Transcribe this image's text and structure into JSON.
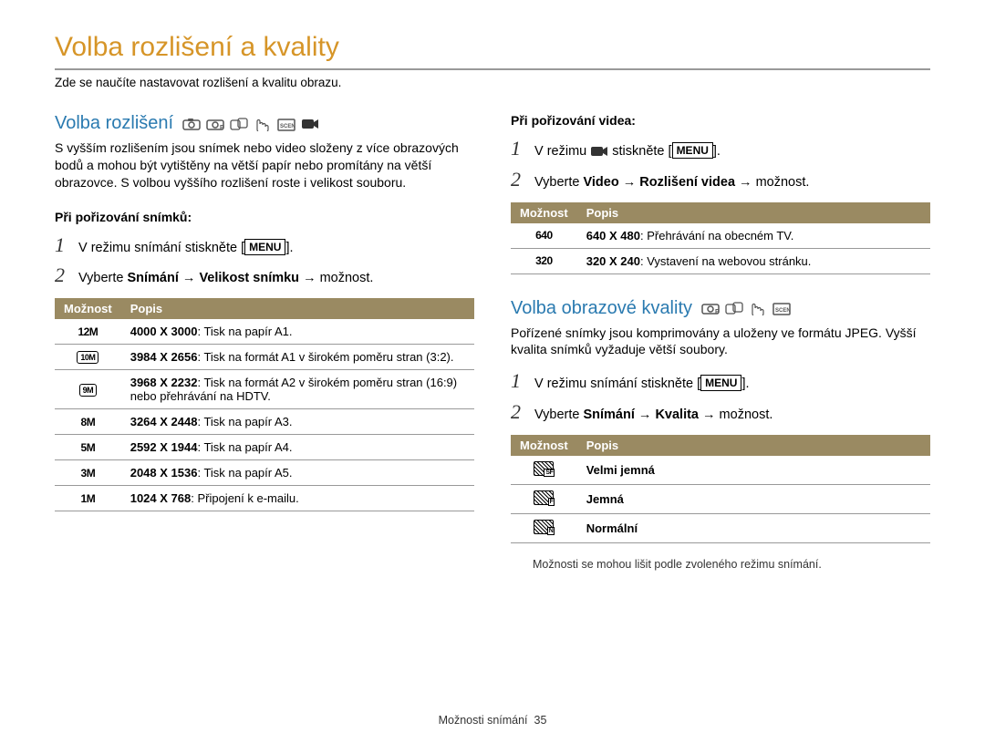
{
  "page": {
    "title": "Volba rozlišení a kvality",
    "subtitle": "Zde se naučíte nastavovat rozlišení a kvalitu obrazu.",
    "footer_label": "Možnosti snímání",
    "footer_page": "35"
  },
  "colors": {
    "title": "#d69528",
    "section": "#2a7ab0",
    "table_header_bg": "#9a8a62",
    "table_header_fg": "#ffffff",
    "rule": "#999999"
  },
  "menu_label": "MENU",
  "left": {
    "sec_title": "Volba rozlišení",
    "body": "S vyšším rozlišením jsou snímek nebo video složeny z více obrazových bodů a mohou být vytištěny na větší papír nebo promítány na větší obrazovce. S volbou vyššího rozlišení roste i velikost souboru.",
    "photo_head": "Při pořizování snímků:",
    "photo_steps": {
      "s1_pre": "V režimu snímání stiskněte [",
      "s1_post": "].",
      "s2_pre": "Vyberte ",
      "s2_b1": "Snímání",
      "s2_arrow1": " → ",
      "s2_b2": "Velikost snímku",
      "s2_arrow2": " → možnost."
    },
    "photo_table": {
      "col1": "Možnost",
      "col2": "Popis",
      "rows": [
        {
          "icon": "12m",
          "bold": "4000 X 3000",
          "rest": ": Tisk na papír A1."
        },
        {
          "icon": "10mw",
          "bold": "3984 X 2656",
          "rest": ": Tisk na formát A1 v širokém poměru stran (3:2)."
        },
        {
          "icon": "9mw",
          "bold": "3968 X 2232",
          "rest": ": Tisk na formát A2 v širokém poměru stran (16:9) nebo přehrávání na HDTV."
        },
        {
          "icon": "8m",
          "bold": "3264 X 2448",
          "rest": ": Tisk na papír A3."
        },
        {
          "icon": "5m",
          "bold": "2592 X 1944",
          "rest": ": Tisk na papír A4."
        },
        {
          "icon": "3m",
          "bold": "2048 X 1536",
          "rest": ": Tisk na papír A5."
        },
        {
          "icon": "1m",
          "bold": "1024 X 768",
          "rest": ": Připojení k e-mailu."
        }
      ]
    }
  },
  "right": {
    "video_head": "Při pořizování videa:",
    "video_steps": {
      "s1_pre": "V režimu ",
      "s1_mid": " stiskněte [",
      "s1_post": "].",
      "s2_pre": "Vyberte ",
      "s2_b1": "Video",
      "s2_arrow1": " → ",
      "s2_b2": "Rozlišení videa",
      "s2_arrow2": " → možnost."
    },
    "video_table": {
      "col1": "Možnost",
      "col2": "Popis",
      "rows": [
        {
          "icon": "640",
          "bold": "640 X 480",
          "rest": ": Přehrávání na obecném TV."
        },
        {
          "icon": "320",
          "bold": "320 X 240",
          "rest": ": Vystavení na webovou stránku."
        }
      ]
    },
    "sec_title": "Volba obrazové kvality",
    "body": "Pořízené snímky jsou komprimovány a uloženy ve formátu JPEG. Vyšší kvalita snímků vyžaduje větší soubory.",
    "quality_steps": {
      "s1_pre": "V režimu snímání stiskněte [",
      "s1_post": "].",
      "s2_pre": "Vyberte ",
      "s2_b1": "Snímání",
      "s2_arrow1": " → ",
      "s2_b2": "Kvalita",
      "s2_arrow2": " → možnost."
    },
    "quality_table": {
      "col1": "Možnost",
      "col2": "Popis",
      "rows": [
        {
          "icon": "sf",
          "label": "Velmi jemná"
        },
        {
          "icon": "f",
          "label": "Jemná"
        },
        {
          "icon": "n",
          "label": "Normální"
        }
      ]
    },
    "note": "Možnosti se mohou lišit podle zvoleného režimu snímání."
  },
  "icons": {
    "photo_option_labels": {
      "12m": "12M",
      "10mw": "10M",
      "9mw": "9M",
      "8m": "8M",
      "5m": "5M",
      "3m": "3M",
      "1m": "1M"
    }
  }
}
